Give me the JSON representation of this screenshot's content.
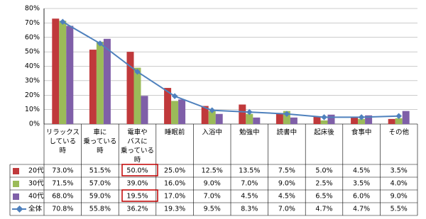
{
  "chart_data": {
    "type": "bar",
    "categories": [
      [
        "リラックス",
        "している",
        "時"
      ],
      [
        "車に",
        "乗っている",
        "時"
      ],
      [
        "電車や",
        "バスに",
        "乗っている",
        "時"
      ],
      [
        "睡眠前"
      ],
      [
        "入浴中"
      ],
      [
        "勉強中"
      ],
      [
        "読書中"
      ],
      [
        "起床後"
      ],
      [
        "食事中"
      ],
      [
        "その他"
      ]
    ],
    "series": [
      {
        "name": "20代",
        "color": "#c0393b",
        "values": [
          73.0,
          51.5,
          50.0,
          25.0,
          12.5,
          13.5,
          7.5,
          5.0,
          4.5,
          3.5
        ],
        "value_labels": [
          "73.0%",
          "51.5%",
          "50.0%",
          "25.0%",
          "12.5%",
          "13.5%",
          "7.5%",
          "5.0%",
          "4.5%",
          "3.5%"
        ]
      },
      {
        "name": "30代",
        "color": "#9bbb59",
        "values": [
          71.5,
          57.0,
          39.0,
          16.0,
          9.0,
          7.0,
          9.0,
          2.5,
          3.5,
          4.0
        ],
        "value_labels": [
          "71.5%",
          "57.0%",
          "39.0%",
          "16.0%",
          "9.0%",
          "7.0%",
          "9.0%",
          "2.5%",
          "3.5%",
          "4.0%"
        ]
      },
      {
        "name": "40代",
        "color": "#7f5fa8",
        "values": [
          68.0,
          59.0,
          19.5,
          17.0,
          7.0,
          4.5,
          4.5,
          6.5,
          6.0,
          9.0
        ],
        "value_labels": [
          "68.0%",
          "59.0%",
          "19.5%",
          "17.0%",
          "7.0%",
          "4.5%",
          "4.5%",
          "6.5%",
          "6.0%",
          "9.0%"
        ]
      },
      {
        "name": "全体",
        "type": "line",
        "color": "#4f81bd",
        "values": [
          70.8,
          55.8,
          36.2,
          19.3,
          9.5,
          8.3,
          7.0,
          4.7,
          4.7,
          5.5
        ],
        "value_labels": [
          "70.8%",
          "55.8%",
          "36.2%",
          "19.3%",
          "9.5%",
          "8.3%",
          "7.0%",
          "4.7%",
          "4.7%",
          "5.5%"
        ]
      }
    ],
    "ylim": [
      0,
      80
    ],
    "yticks": [
      {
        "value": 0,
        "label": "0%"
      },
      {
        "value": 10,
        "label": "10%"
      },
      {
        "value": 20,
        "label": "20%"
      },
      {
        "value": 30,
        "label": "30%"
      },
      {
        "value": 40,
        "label": "40%"
      },
      {
        "value": 50,
        "label": "50%"
      },
      {
        "value": 60,
        "label": "60%"
      },
      {
        "value": 70,
        "label": "70%"
      },
      {
        "value": 80,
        "label": "80%"
      }
    ],
    "grid": true
  }
}
